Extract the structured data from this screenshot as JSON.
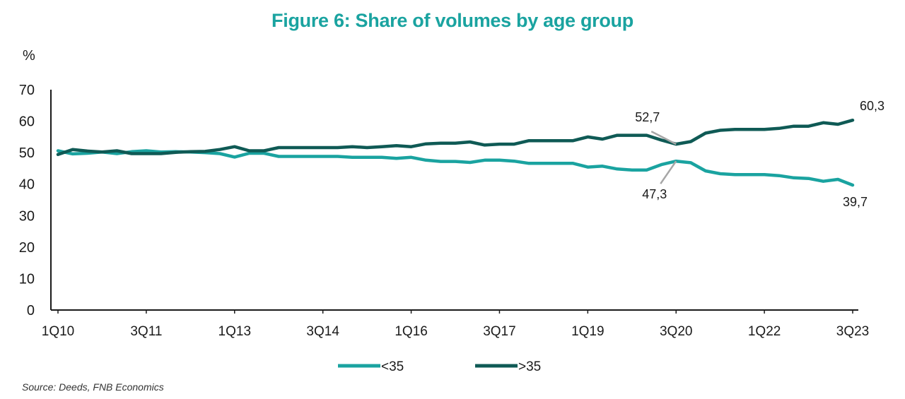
{
  "title": "Figure 6: Share of volumes by age group",
  "source": "Source: Deeds, FNB Economics",
  "chart_data": {
    "type": "line",
    "ylabel": "%",
    "ylim": [
      0,
      70
    ],
    "yticks": [
      "0",
      "10",
      "20",
      "30",
      "40",
      "50",
      "60",
      "70"
    ],
    "xticks": [
      "1Q10",
      "3Q11",
      "1Q13",
      "3Q14",
      "1Q16",
      "3Q17",
      "1Q19",
      "3Q20",
      "1Q22",
      "3Q23"
    ],
    "x": [
      "1Q10",
      "2Q10",
      "3Q10",
      "4Q10",
      "1Q11",
      "2Q11",
      "3Q11",
      "4Q11",
      "1Q12",
      "2Q12",
      "3Q12",
      "4Q12",
      "1Q13",
      "2Q13",
      "3Q13",
      "4Q13",
      "1Q14",
      "2Q14",
      "3Q14",
      "4Q14",
      "1Q15",
      "2Q15",
      "3Q15",
      "4Q15",
      "1Q16",
      "2Q16",
      "3Q16",
      "4Q16",
      "1Q17",
      "2Q17",
      "3Q17",
      "4Q17",
      "1Q18",
      "2Q18",
      "3Q18",
      "4Q18",
      "1Q19",
      "2Q19",
      "3Q19",
      "4Q19",
      "1Q20",
      "2Q20",
      "3Q20",
      "4Q20",
      "1Q21",
      "2Q21",
      "3Q21",
      "4Q21",
      "1Q22",
      "2Q22",
      "3Q22",
      "4Q22",
      "1Q23",
      "2Q23",
      "3Q23"
    ],
    "legend": "bottom-center",
    "grid": false,
    "series": [
      {
        "name": "<35",
        "color": "#1aa3a0",
        "values": [
          50.6,
          49.6,
          49.8,
          50.2,
          49.7,
          50.3,
          50.6,
          50.2,
          50.3,
          50.2,
          50.0,
          49.7,
          48.6,
          49.8,
          49.8,
          48.8,
          48.8,
          48.8,
          48.8,
          48.8,
          48.5,
          48.5,
          48.5,
          48.2,
          48.5,
          47.6,
          47.2,
          47.2,
          46.9,
          47.6,
          47.6,
          47.3,
          46.6,
          46.6,
          46.6,
          46.6,
          45.4,
          45.7,
          44.8,
          44.5,
          44.5,
          46.2,
          47.3,
          46.8,
          44.2,
          43.3,
          43.0,
          43.0,
          43.0,
          42.7,
          42.0,
          41.8,
          40.9,
          41.5,
          39.7
        ]
      },
      {
        "name": ">35",
        "color": "#0f5a55",
        "values": [
          49.4,
          51.0,
          50.5,
          50.2,
          50.6,
          49.7,
          49.7,
          49.7,
          50.1,
          50.3,
          50.4,
          51.0,
          51.9,
          50.6,
          50.6,
          51.6,
          51.6,
          51.6,
          51.6,
          51.6,
          51.9,
          51.6,
          51.9,
          52.2,
          51.9,
          52.8,
          53.0,
          53.0,
          53.4,
          52.4,
          52.7,
          52.7,
          53.8,
          53.8,
          53.8,
          53.8,
          55.0,
          54.3,
          55.5,
          55.5,
          55.5,
          54.0,
          52.7,
          53.5,
          56.2,
          57.1,
          57.4,
          57.4,
          57.4,
          57.7,
          58.4,
          58.4,
          59.5,
          59.0,
          60.3
        ]
      }
    ],
    "annotations": [
      {
        "text": "52,7",
        "series": 1,
        "index": 42
      },
      {
        "text": "47,3",
        "series": 0,
        "index": 42
      },
      {
        "text": "60,3",
        "series": 1,
        "index": 54
      },
      {
        "text": "39,7",
        "series": 0,
        "index": 54
      }
    ]
  }
}
